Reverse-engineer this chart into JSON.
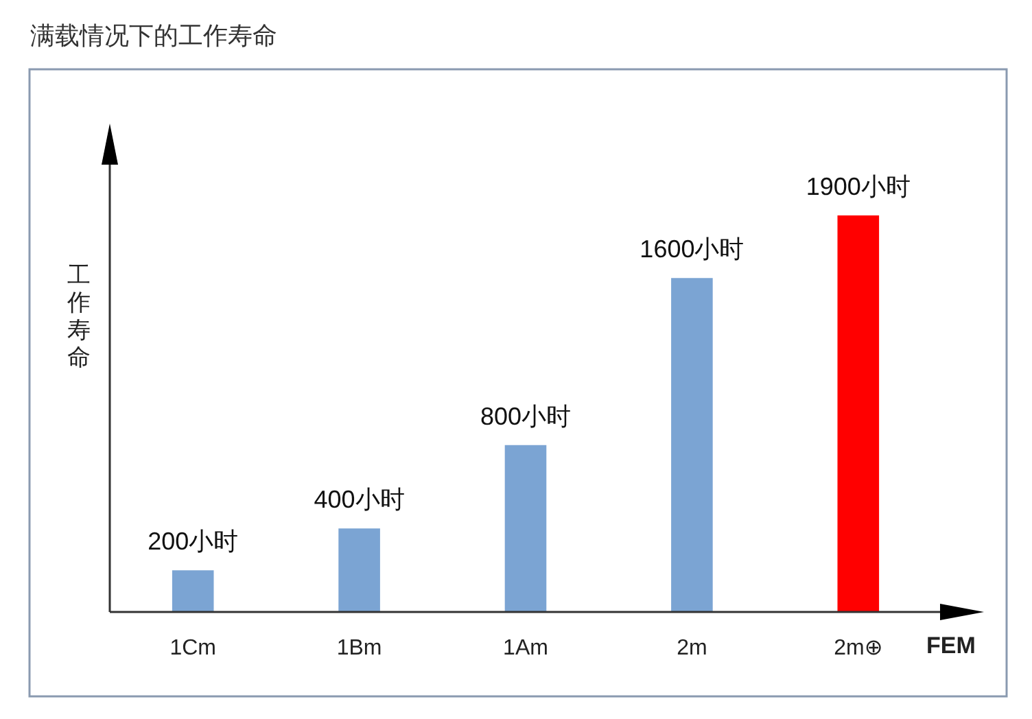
{
  "chart_data": {
    "type": "bar",
    "title": "满载情况下的工作寿命",
    "ylabel": "工作寿命",
    "xlabel": "FEM",
    "categories": [
      "1Cm",
      "1Bm",
      "1Am",
      "2m",
      "2m⊕"
    ],
    "values": [
      200,
      400,
      800,
      1600,
      1900
    ],
    "colors": [
      "#7ba4d3",
      "#7ba4d3",
      "#7ba4d3",
      "#7ba4d3",
      "#ff0000"
    ],
    "value_labels": [
      "200小时",
      "400小时",
      "800小时",
      "1600小时",
      "1900小时"
    ],
    "tick_labels": "x"
  }
}
